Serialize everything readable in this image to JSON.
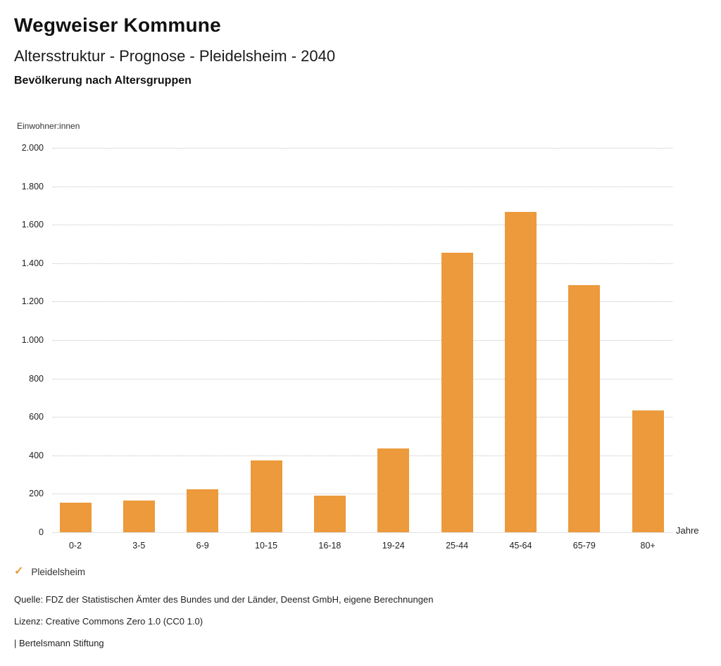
{
  "header": {
    "title": "Wegweiser Kommune",
    "subtitle": "Altersstruktur - Prognose - Pleidelsheim - 2040",
    "caption": "Bevölkerung nach Altersgruppen"
  },
  "chart_data": {
    "type": "bar",
    "title": "Bevölkerung nach Altersgruppen",
    "categories": [
      "0-2",
      "3-5",
      "6-9",
      "10-15",
      "16-18",
      "19-24",
      "25-44",
      "45-64",
      "65-79",
      "80+"
    ],
    "values": [
      155,
      165,
      225,
      375,
      190,
      435,
      1455,
      1665,
      1285,
      635
    ],
    "series_name": "Pleidelsheim",
    "ylabel": "Einwohner:innen",
    "xlabel": "Jahre",
    "ylim": [
      0,
      2000
    ],
    "ytick_step": 200,
    "ytick_labels": [
      "0",
      "200",
      "400",
      "600",
      "800",
      "1.000",
      "1.200",
      "1.400",
      "1.600",
      "1.800",
      "2.000"
    ],
    "grid": "horizontal dotted",
    "legend_position": "bottom-left",
    "bar_color": "#EC9A3B"
  },
  "legend": {
    "check_icon": "✓",
    "label": "Pleidelsheim",
    "color": "#EC9A3B"
  },
  "footer": {
    "source": "Quelle: FDZ der Statistischen Ämter des Bundes und der Länder, Deenst GmbH, eigene Berechnungen",
    "license": "Lizenz: Creative Commons Zero 1.0 (CC0 1.0)",
    "attribution": "| Bertelsmann Stiftung"
  }
}
